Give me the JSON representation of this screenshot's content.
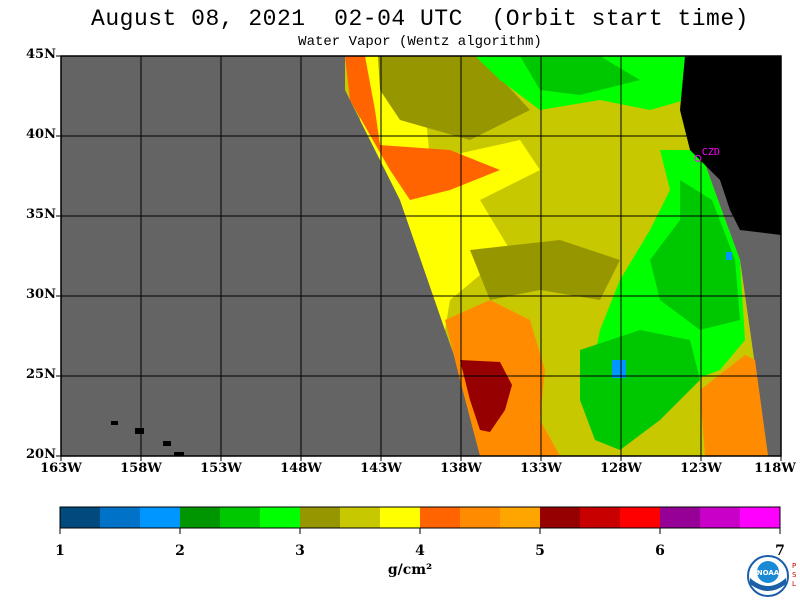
{
  "header": {
    "title": "August 08, 2021  02-04 UTC  (Orbit start time)",
    "subtitle": "Water Vapor (Wentz algorithm)"
  },
  "map": {
    "lat_labels": [
      "45N",
      "40N",
      "35N",
      "30N",
      "25N",
      "20N"
    ],
    "lat_values": [
      45,
      40,
      35,
      30,
      25,
      20
    ],
    "lon_labels": [
      "163W",
      "158W",
      "153W",
      "148W",
      "143W",
      "138W",
      "133W",
      "128W",
      "123W",
      "118W"
    ],
    "lon_values": [
      -163,
      -158,
      -153,
      -148,
      -143,
      -138,
      -133,
      -128,
      -123,
      -118
    ],
    "lat_range": [
      20,
      45
    ],
    "lon_range": [
      -163,
      -118
    ],
    "station_label": "CZD",
    "station_lat": 38.6,
    "station_lon": -123.2,
    "no_data_color": "#646464",
    "land_color": "#000000",
    "grid_color": "#000000"
  },
  "colorbar": {
    "min": 1,
    "max": 7,
    "tick_labels": [
      "1",
      "2",
      "3",
      "4",
      "5",
      "6",
      "7"
    ],
    "units": "g/cm²",
    "colors": [
      "#004a7e",
      "#0072c8",
      "#0096ff",
      "#009600",
      "#00c800",
      "#00ff00",
      "#969600",
      "#c8c800",
      "#ffff00",
      "#ff6400",
      "#ff8c00",
      "#ffa500",
      "#960000",
      "#c80000",
      "#ff0000",
      "#960096",
      "#c800c8",
      "#ff00ff"
    ]
  },
  "logo": {
    "agency_text": "NOAA",
    "side_text": "PSL"
  }
}
